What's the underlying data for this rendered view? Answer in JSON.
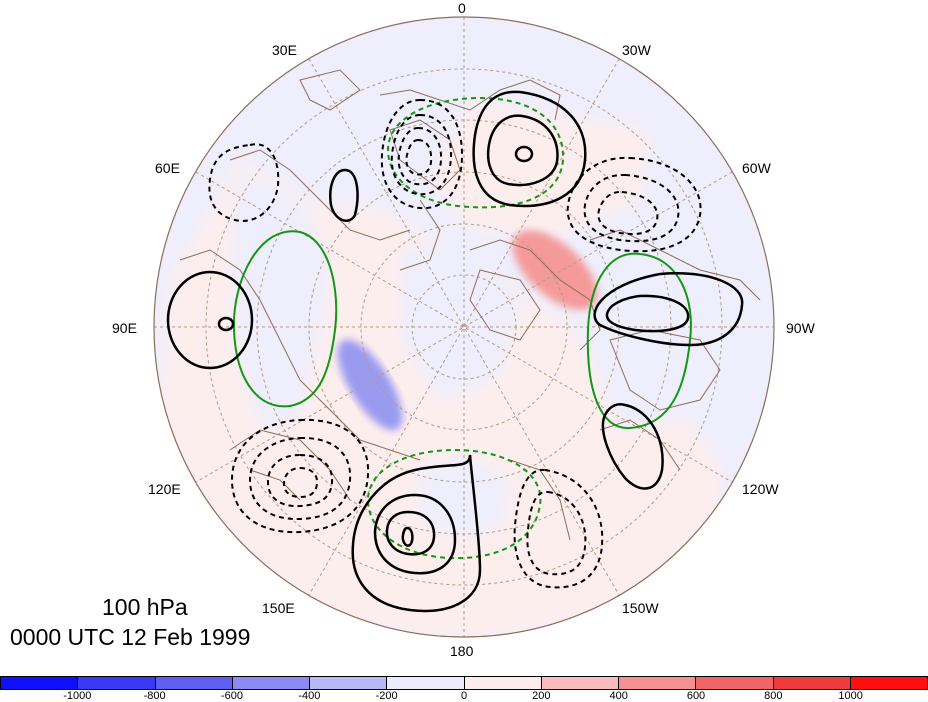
{
  "map": {
    "projection": "north polar stereographic",
    "longitude_labels": [
      "0",
      "30W",
      "60W",
      "90W",
      "120W",
      "150W",
      "180",
      "150E",
      "120E",
      "90E",
      "60E",
      "30E"
    ],
    "title_level": "100 hPa",
    "title_time": "0000 UTC 12 Feb 1999"
  },
  "colorbar": {
    "tick_labels": [
      "-1000",
      "-800",
      "-600",
      "-400",
      "-200",
      "0",
      "200",
      "400",
      "600",
      "800",
      "1000"
    ],
    "colors": [
      "#1010ff",
      "#3a3af2",
      "#5e5ef0",
      "#8a8af2",
      "#b8b8f6",
      "#ececfc",
      "#fdecec",
      "#f8bcbc",
      "#f59090",
      "#f06666",
      "#ec3c3c",
      "#ff0f0f"
    ]
  },
  "legend_colors": {
    "positive_contour": "#000000",
    "negative_contour": "#000000",
    "green_contour": "#149614",
    "coastline": "#8b6e5a"
  }
}
